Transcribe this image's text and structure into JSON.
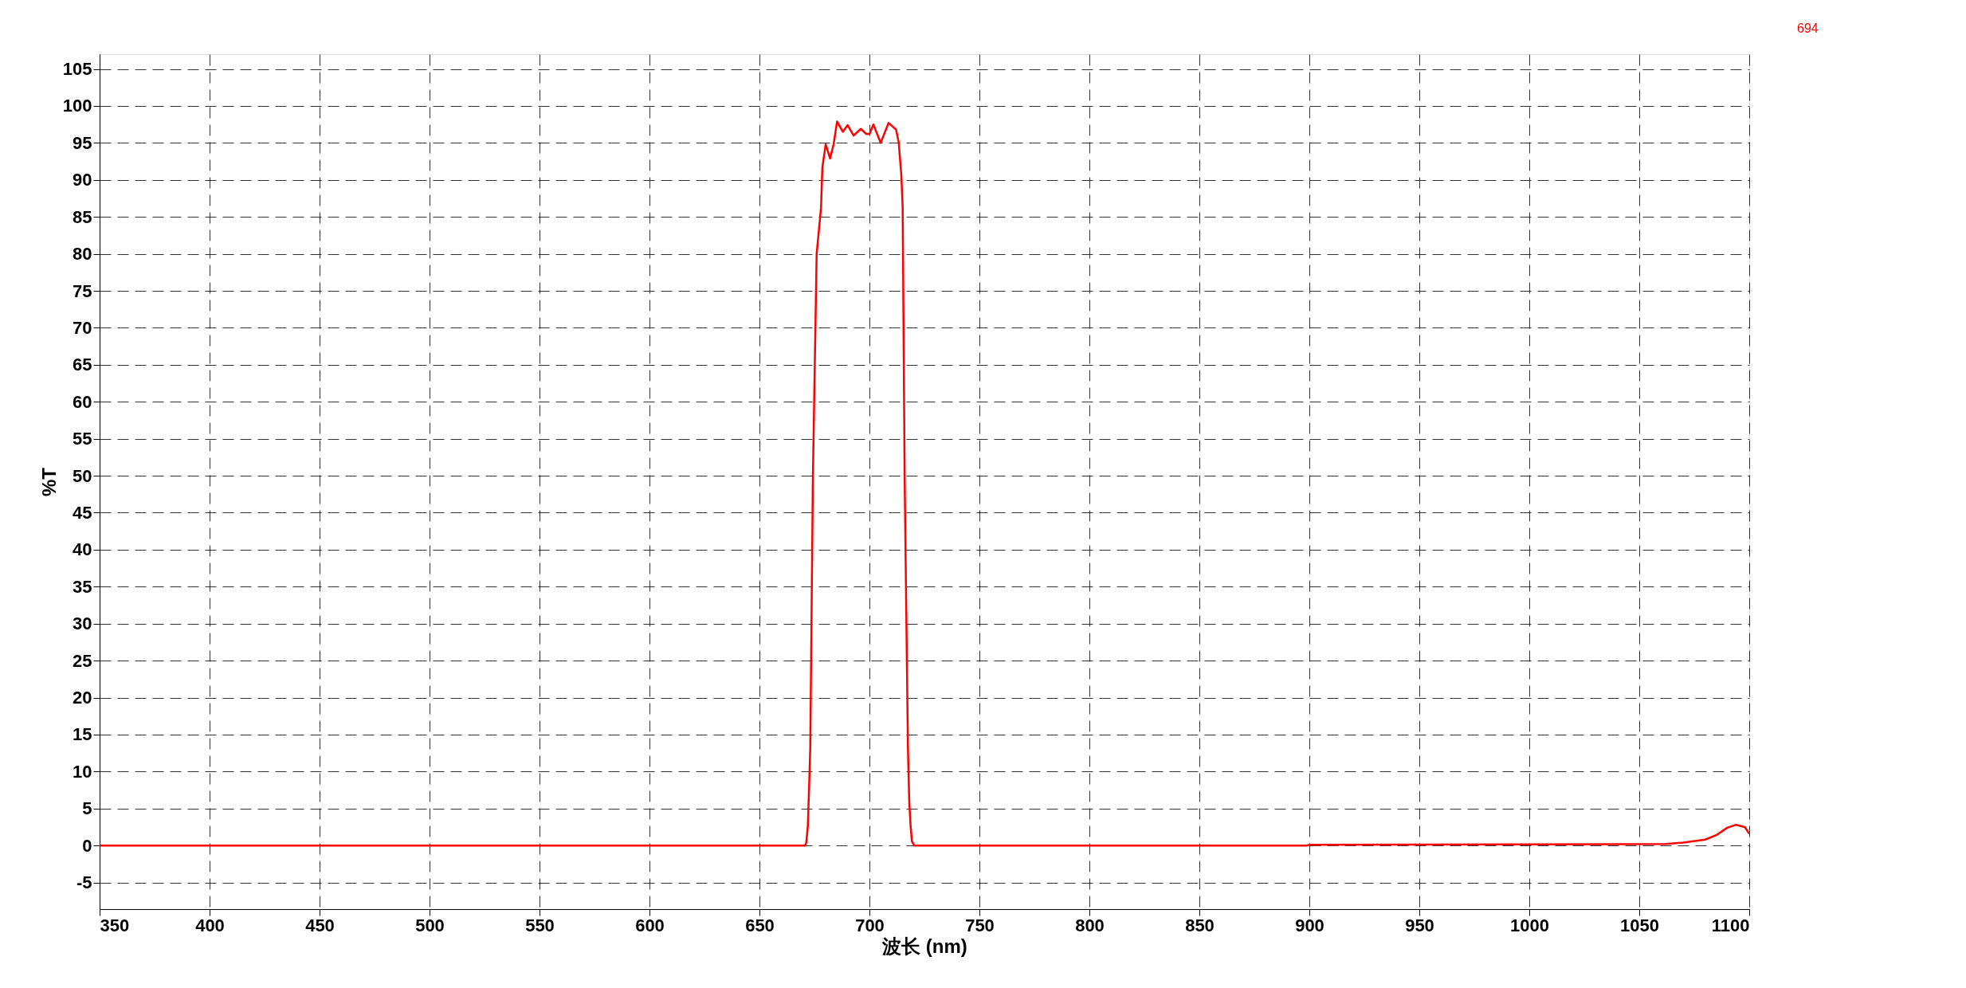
{
  "chart_data": {
    "type": "line",
    "xlabel": "波长 (nm)",
    "ylabel": "%T",
    "xlim": [
      350,
      1100
    ],
    "ylim": [
      -8.6,
      107
    ],
    "xticks": [
      350,
      400,
      450,
      500,
      550,
      600,
      650,
      700,
      750,
      800,
      850,
      900,
      950,
      1000,
      1050,
      1100
    ],
    "yticks": [
      -5,
      0,
      5,
      10,
      15,
      20,
      25,
      30,
      35,
      40,
      45,
      50,
      55,
      60,
      65,
      70,
      75,
      80,
      85,
      90,
      95,
      100,
      105
    ],
    "grid": true,
    "legend": "top right",
    "line_style": "solid",
    "marker": "none",
    "series": [
      {
        "name": "694",
        "color": "#ff0000",
        "x": [
          350,
          670.8,
          671.3,
          672.0,
          672.5,
          673.1,
          674.3,
          676.0,
          678.0,
          678.6,
          680.1,
          682.1,
          683.7,
          685.3,
          687.9,
          690.1,
          692.8,
          696.1,
          698.6,
          700,
          701.8,
          705.1,
          708.7,
          712.1,
          713.3,
          714.5,
          715.1,
          716.0,
          717.5,
          718.1,
          718.7,
          719.3,
          720.3,
          899,
          900,
          1062,
          1070,
          1080,
          1085,
          1090,
          1094,
          1098,
          1100
        ],
        "values": [
          0,
          0,
          0.4,
          2.7,
          7.3,
          13.2,
          50,
          80,
          86.3,
          91.7,
          94.8,
          92.9,
          94.8,
          97.9,
          96.5,
          97.4,
          96.0,
          96.9,
          96.2,
          96.2,
          97.5,
          95.0,
          97.7,
          96.8,
          95.1,
          90.6,
          86.3,
          50,
          13.2,
          5.9,
          2.7,
          0.6,
          0,
          0,
          0.1,
          0.2,
          0.4,
          0.8,
          1.4,
          2.4,
          2.8,
          2.5,
          1.6
        ]
      }
    ]
  }
}
